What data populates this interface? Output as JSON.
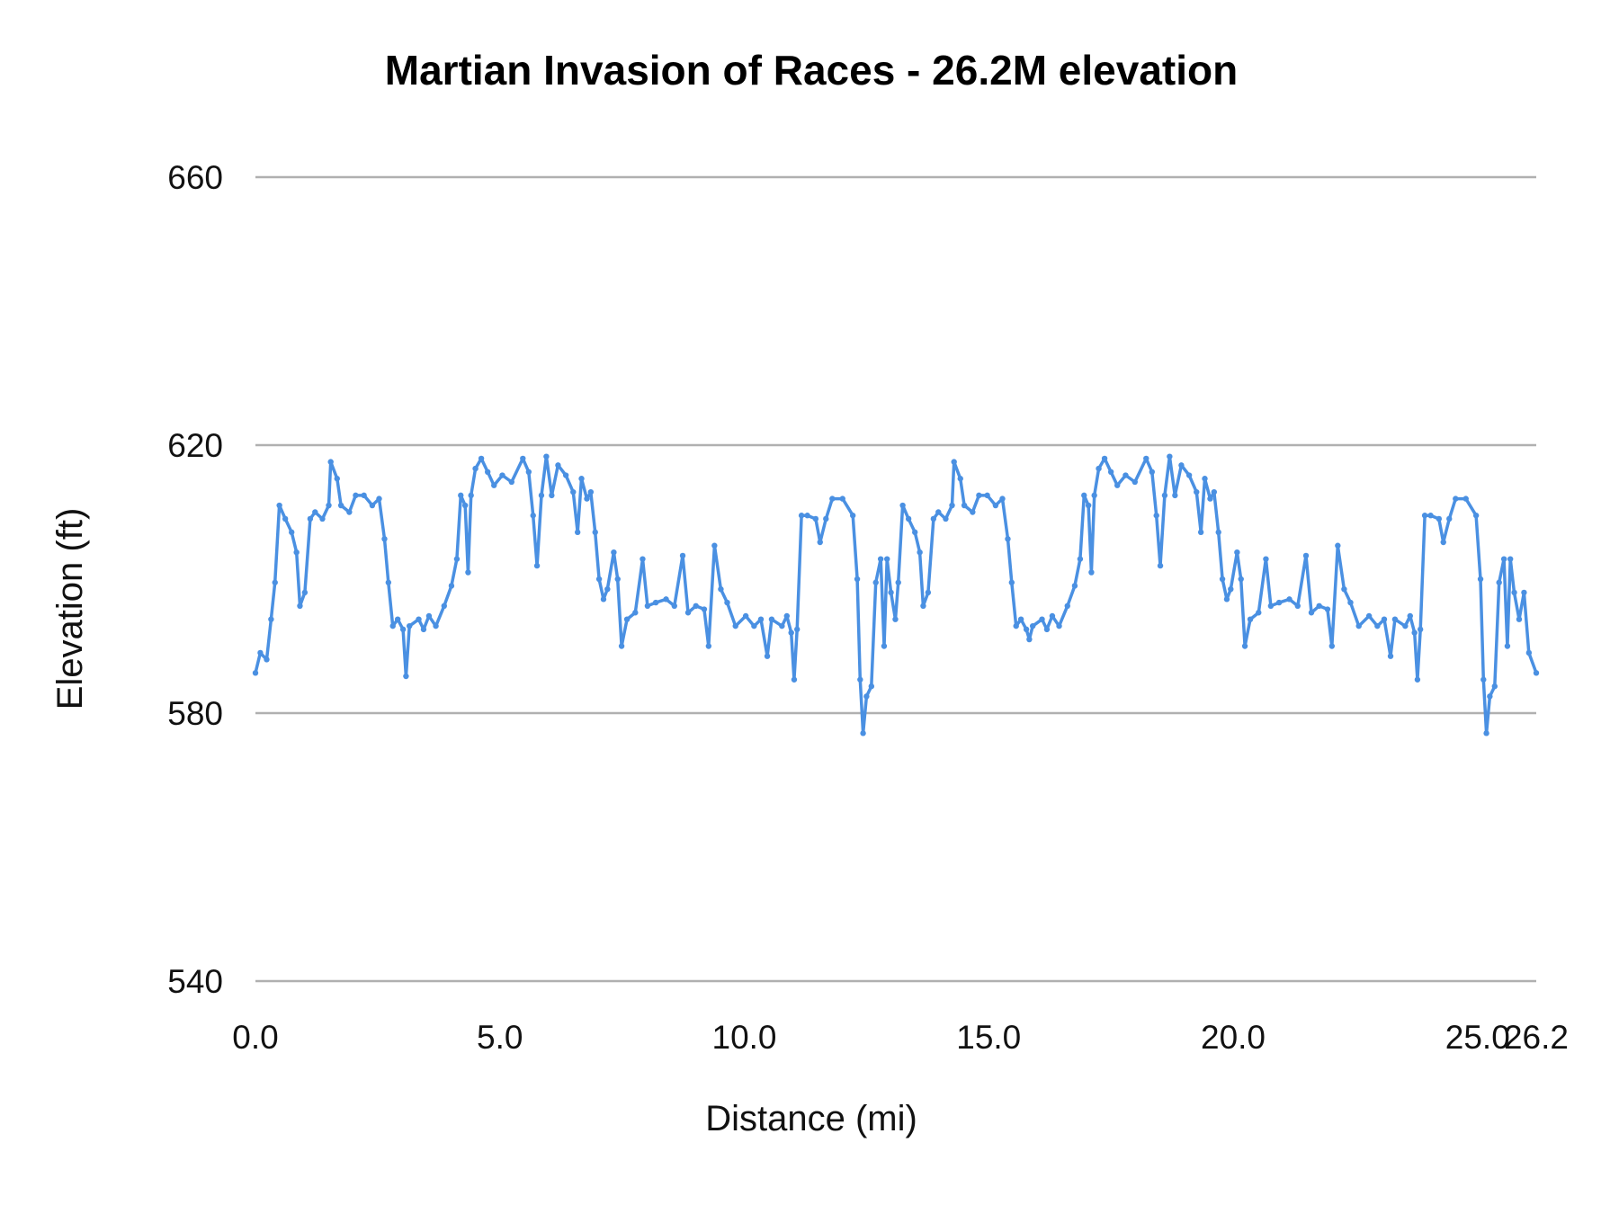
{
  "chart_data": {
    "type": "line",
    "title": "Martian Invasion of Races - 26.2M elevation",
    "xlabel": "Distance (mi)",
    "ylabel": "Elevation (ft)",
    "xlim": [
      0,
      26.2
    ],
    "ylim": [
      540,
      660
    ],
    "x_ticks": [
      "0.0",
      "5.0",
      "10.0",
      "15.0",
      "20.0",
      "25.0",
      "26.2"
    ],
    "x_tick_values": [
      0,
      5,
      10,
      15,
      20,
      25,
      26.2
    ],
    "y_ticks": [
      "540",
      "580",
      "620",
      "660"
    ],
    "y_tick_values": [
      540,
      580,
      620,
      660
    ],
    "grid": "horizontal",
    "legend": "none",
    "markers": true,
    "color": "#4a90e2",
    "points": [
      [
        0,
        586
      ],
      [
        0.1,
        589
      ],
      [
        0.23,
        588
      ],
      [
        0.32,
        594
      ],
      [
        0.4,
        599.5
      ],
      [
        0.49,
        611
      ],
      [
        0.61,
        609
      ],
      [
        0.74,
        607
      ],
      [
        0.84,
        604
      ],
      [
        0.91,
        596
      ],
      [
        1.01,
        598
      ],
      [
        1.12,
        609
      ],
      [
        1.22,
        610
      ],
      [
        1.37,
        609
      ],
      [
        1.5,
        611
      ],
      [
        1.54,
        617.5
      ],
      [
        1.67,
        615
      ],
      [
        1.75,
        611
      ],
      [
        1.92,
        610
      ],
      [
        2.05,
        612.5
      ],
      [
        2.22,
        612.5
      ],
      [
        2.39,
        611
      ],
      [
        2.53,
        612
      ],
      [
        2.64,
        606
      ],
      [
        2.72,
        599.5
      ],
      [
        2.81,
        593
      ],
      [
        2.91,
        594
      ],
      [
        3.02,
        592.5
      ],
      [
        3.08,
        585.5
      ],
      [
        3.15,
        593
      ],
      [
        3.34,
        594
      ],
      [
        3.44,
        592.5
      ],
      [
        3.55,
        594.5
      ],
      [
        3.69,
        593
      ],
      [
        3.86,
        596
      ],
      [
        4.01,
        599
      ],
      [
        4.12,
        603
      ],
      [
        4.2,
        612.5
      ],
      [
        4.29,
        611
      ],
      [
        4.35,
        601
      ],
      [
        4.41,
        612.5
      ],
      [
        4.5,
        616.5
      ],
      [
        4.62,
        618
      ],
      [
        4.75,
        616
      ],
      [
        4.88,
        614
      ],
      [
        5.05,
        615.5
      ],
      [
        5.24,
        614.5
      ],
      [
        5.47,
        618
      ],
      [
        5.59,
        616
      ],
      [
        5.68,
        609.5
      ],
      [
        5.76,
        602
      ],
      [
        5.85,
        612.5
      ],
      [
        5.95,
        618.3
      ],
      [
        6.06,
        612.5
      ],
      [
        6.19,
        617
      ],
      [
        6.35,
        615.5
      ],
      [
        6.5,
        613
      ],
      [
        6.59,
        607
      ],
      [
        6.67,
        615
      ],
      [
        6.78,
        612
      ],
      [
        6.86,
        613
      ],
      [
        6.95,
        607
      ],
      [
        7.03,
        600
      ],
      [
        7.12,
        597
      ],
      [
        7.2,
        598.5
      ],
      [
        7.33,
        604
      ],
      [
        7.41,
        600
      ],
      [
        7.49,
        590
      ],
      [
        7.6,
        594
      ],
      [
        7.77,
        595
      ],
      [
        7.92,
        603
      ],
      [
        8.02,
        596
      ],
      [
        8.19,
        596.5
      ],
      [
        8.4,
        597
      ],
      [
        8.57,
        596
      ],
      [
        8.74,
        603.5
      ],
      [
        8.85,
        595
      ],
      [
        9.01,
        596
      ],
      [
        9.18,
        595.5
      ],
      [
        9.27,
        590
      ],
      [
        9.39,
        605
      ],
      [
        9.52,
        598.5
      ],
      [
        9.65,
        596.5
      ],
      [
        9.82,
        593
      ],
      [
        10.03,
        594.5
      ],
      [
        10.2,
        593
      ],
      [
        10.34,
        594
      ],
      [
        10.47,
        588.5
      ],
      [
        10.56,
        594
      ],
      [
        10.77,
        593
      ],
      [
        10.87,
        594.5
      ],
      [
        10.96,
        592
      ],
      [
        11.02,
        585
      ],
      [
        11.08,
        592.5
      ],
      [
        11.17,
        609.5
      ],
      [
        11.29,
        609.5
      ],
      [
        11.46,
        609
      ],
      [
        11.55,
        605.5
      ],
      [
        11.67,
        609
      ],
      [
        11.8,
        612
      ],
      [
        12.01,
        612
      ],
      [
        12.22,
        609.5
      ],
      [
        12.31,
        600
      ],
      [
        12.37,
        585
      ],
      [
        12.43,
        577
      ],
      [
        12.5,
        582.5
      ],
      [
        12.6,
        584
      ],
      [
        12.69,
        599.5
      ],
      [
        12.79,
        603
      ],
      [
        12.86,
        590
      ],
      [
        12.92,
        603
      ],
      [
        13.0,
        598
      ],
      [
        13.09,
        594
      ],
      [
        13.15,
        599.5
      ],
      [
        13.24,
        611
      ],
      [
        13.36,
        609
      ],
      [
        13.49,
        607
      ],
      [
        13.59,
        604
      ],
      [
        13.66,
        596
      ],
      [
        13.76,
        598
      ],
      [
        13.87,
        609
      ],
      [
        13.97,
        610
      ],
      [
        14.12,
        609
      ],
      [
        14.25,
        611
      ],
      [
        14.29,
        617.5
      ],
      [
        14.42,
        615
      ],
      [
        14.5,
        611
      ],
      [
        14.67,
        610
      ],
      [
        14.8,
        612.5
      ],
      [
        14.97,
        612.5
      ],
      [
        15.14,
        611
      ],
      [
        15.28,
        612
      ],
      [
        15.39,
        606
      ],
      [
        15.47,
        599.5
      ],
      [
        15.56,
        593
      ],
      [
        15.66,
        594
      ],
      [
        15.77,
        592.5
      ],
      [
        15.83,
        591
      ],
      [
        15.9,
        593
      ],
      [
        16.09,
        594
      ],
      [
        16.19,
        592.5
      ],
      [
        16.3,
        594.5
      ],
      [
        16.44,
        593
      ],
      [
        16.61,
        596
      ],
      [
        16.76,
        599
      ],
      [
        16.87,
        603
      ],
      [
        16.95,
        612.5
      ],
      [
        17.04,
        611
      ],
      [
        17.1,
        601
      ],
      [
        17.16,
        612.5
      ],
      [
        17.25,
        616.5
      ],
      [
        17.37,
        618
      ],
      [
        17.5,
        616
      ],
      [
        17.63,
        614
      ],
      [
        17.8,
        615.5
      ],
      [
        17.99,
        614.5
      ],
      [
        18.22,
        618
      ],
      [
        18.34,
        616
      ],
      [
        18.43,
        609.5
      ],
      [
        18.51,
        602
      ],
      [
        18.6,
        612.5
      ],
      [
        18.7,
        618.3
      ],
      [
        18.81,
        612.5
      ],
      [
        18.94,
        617
      ],
      [
        19.1,
        615.5
      ],
      [
        19.25,
        613
      ],
      [
        19.34,
        607
      ],
      [
        19.42,
        615
      ],
      [
        19.53,
        612
      ],
      [
        19.61,
        613
      ],
      [
        19.7,
        607
      ],
      [
        19.78,
        600
      ],
      [
        19.87,
        597
      ],
      [
        19.95,
        598.5
      ],
      [
        20.08,
        604
      ],
      [
        20.16,
        600
      ],
      [
        20.24,
        590
      ],
      [
        20.35,
        594
      ],
      [
        20.52,
        595
      ],
      [
        20.67,
        603
      ],
      [
        20.77,
        596
      ],
      [
        20.94,
        596.5
      ],
      [
        21.15,
        597
      ],
      [
        21.32,
        596
      ],
      [
        21.49,
        603.5
      ],
      [
        21.6,
        595
      ],
      [
        21.76,
        596
      ],
      [
        21.93,
        595.5
      ],
      [
        22.02,
        590
      ],
      [
        22.14,
        605
      ],
      [
        22.27,
        598.5
      ],
      [
        22.4,
        596.5
      ],
      [
        22.57,
        593
      ],
      [
        22.78,
        594.5
      ],
      [
        22.95,
        593
      ],
      [
        23.09,
        594
      ],
      [
        23.22,
        588.5
      ],
      [
        23.31,
        594
      ],
      [
        23.52,
        593
      ],
      [
        23.62,
        594.5
      ],
      [
        23.71,
        592
      ],
      [
        23.77,
        585
      ],
      [
        23.83,
        592.5
      ],
      [
        23.92,
        609.5
      ],
      [
        24.04,
        609.5
      ],
      [
        24.21,
        609
      ],
      [
        24.3,
        605.5
      ],
      [
        24.42,
        609
      ],
      [
        24.55,
        612
      ],
      [
        24.76,
        612
      ],
      [
        24.97,
        609.5
      ],
      [
        25.06,
        600
      ],
      [
        25.12,
        585
      ],
      [
        25.18,
        577
      ],
      [
        25.25,
        582.5
      ],
      [
        25.35,
        584
      ],
      [
        25.44,
        599.5
      ],
      [
        25.54,
        603
      ],
      [
        25.61,
        590
      ],
      [
        25.67,
        603
      ],
      [
        25.75,
        598
      ],
      [
        25.85,
        594
      ],
      [
        25.95,
        598
      ],
      [
        26.05,
        589
      ],
      [
        26.2,
        586
      ]
    ]
  }
}
